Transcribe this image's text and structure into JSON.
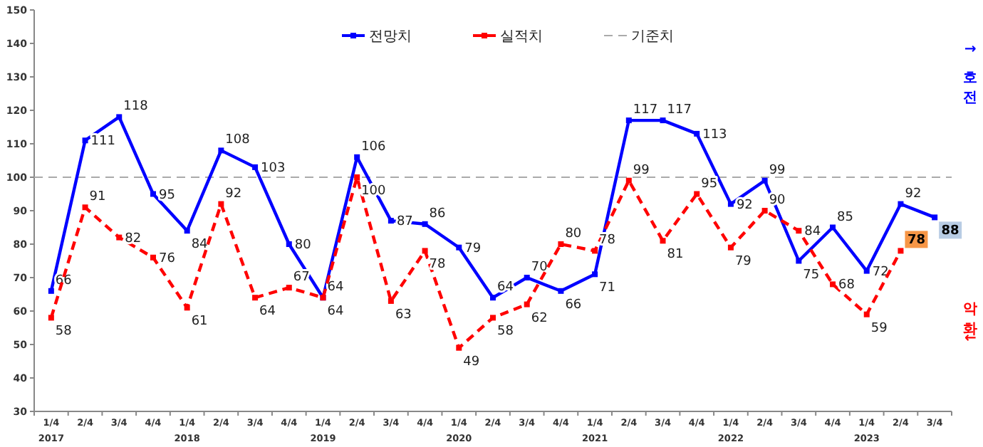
{
  "chart_data": {
    "type": "line",
    "categories": [
      "1/4\n2017",
      "2/4",
      "3/4",
      "4/4",
      "1/4\n2018",
      "2/4",
      "3/4",
      "4/4",
      "1/4\n2019",
      "2/4",
      "3/4",
      "4/4",
      "1/4\n2020",
      "2/4",
      "3/4",
      "4/4",
      "1/4\n2021",
      "2/4",
      "3/4",
      "4/4",
      "1/4\n2022",
      "2/4",
      "3/4",
      "4/4",
      "1/4\n2023",
      "2/4",
      "3/4"
    ],
    "series": [
      {
        "name": "전망치",
        "color": "#0000ff",
        "line_style": "solid",
        "values": [
          66,
          111,
          118,
          95,
          84,
          108,
          103,
          80,
          64,
          106,
          87,
          86,
          79,
          64,
          70,
          66,
          71,
          117,
          117,
          113,
          92,
          99,
          75,
          85,
          72,
          92,
          88
        ]
      },
      {
        "name": "실적치",
        "color": "#ff0000",
        "line_style": "dashed",
        "values": [
          58,
          91,
          82,
          76,
          61,
          92,
          64,
          67,
          64,
          100,
          63,
          78,
          49,
          58,
          62,
          80,
          78,
          99,
          81,
          95,
          79,
          90,
          84,
          68,
          59,
          78,
          null
        ]
      }
    ],
    "ylim": [
      30,
      150
    ],
    "yticks": [
      30,
      40,
      50,
      60,
      70,
      80,
      90,
      100,
      110,
      120,
      130,
      140,
      150
    ],
    "ref_lines": [
      {
        "axis": "y",
        "value": 100,
        "label": "기준치",
        "color": "#aaaaaa",
        "line_style": "dashed"
      }
    ],
    "annotations": [
      "↑호전",
      "악화↓"
    ],
    "data_labels": true,
    "marker": "square",
    "legend": "top",
    "grid": false
  }
}
